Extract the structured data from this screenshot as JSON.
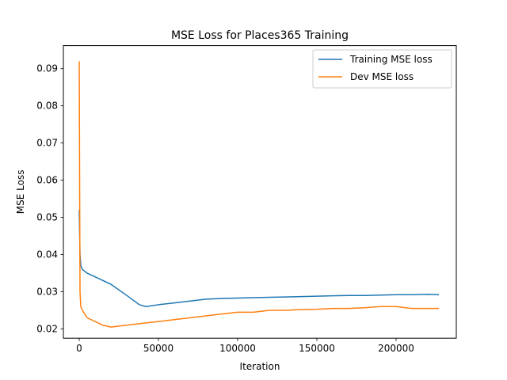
{
  "chart_data": {
    "type": "line",
    "title": "MSE Loss for Places365 Training",
    "xlabel": "Iteration",
    "ylabel": "MSE Loss",
    "xlim": [
      -10000,
      238000
    ],
    "ylim": [
      0.0175,
      0.0962
    ],
    "xticks": [
      0,
      50000,
      100000,
      150000,
      200000
    ],
    "xtick_labels": [
      "0",
      "50000",
      "100000",
      "150000",
      "200000"
    ],
    "yticks": [
      0.02,
      0.03,
      0.04,
      0.05,
      0.06,
      0.07,
      0.08,
      0.09
    ],
    "ytick_labels": [
      "0.02",
      "0.03",
      "0.04",
      "0.05",
      "0.06",
      "0.07",
      "0.08",
      "0.09"
    ],
    "grid": false,
    "legend_position": "top-right",
    "series": [
      {
        "name": "Training MSE loss",
        "color": "#1f77b4",
        "x": [
          0,
          500,
          1000,
          2000,
          5000,
          10000,
          20000,
          30000,
          38000,
          42000,
          50000,
          60000,
          70000,
          80000,
          90000,
          100000,
          110000,
          120000,
          130000,
          140000,
          150000,
          160000,
          170000,
          180000,
          190000,
          200000,
          210000,
          220000,
          227000
        ],
        "y": [
          0.052,
          0.04,
          0.037,
          0.036,
          0.035,
          0.034,
          0.032,
          0.029,
          0.0265,
          0.026,
          0.0265,
          0.027,
          0.0275,
          0.028,
          0.0282,
          0.0283,
          0.0284,
          0.0285,
          0.0286,
          0.0287,
          0.0288,
          0.0289,
          0.029,
          0.029,
          0.0291,
          0.0292,
          0.0292,
          0.0293,
          0.0292
        ]
      },
      {
        "name": "Dev MSE loss",
        "color": "#ff7f0e",
        "x": [
          0,
          500,
          1000,
          2000,
          5000,
          10000,
          15000,
          20000,
          30000,
          40000,
          50000,
          60000,
          70000,
          80000,
          90000,
          100000,
          110000,
          120000,
          130000,
          140000,
          150000,
          160000,
          170000,
          180000,
          190000,
          200000,
          210000,
          220000,
          227000
        ],
        "y": [
          0.092,
          0.03,
          0.026,
          0.025,
          0.023,
          0.022,
          0.021,
          0.0205,
          0.021,
          0.0215,
          0.022,
          0.0225,
          0.023,
          0.0235,
          0.024,
          0.0245,
          0.0245,
          0.025,
          0.025,
          0.0252,
          0.0253,
          0.0255,
          0.0255,
          0.0257,
          0.026,
          0.026,
          0.0255,
          0.0255,
          0.0255
        ]
      }
    ]
  }
}
